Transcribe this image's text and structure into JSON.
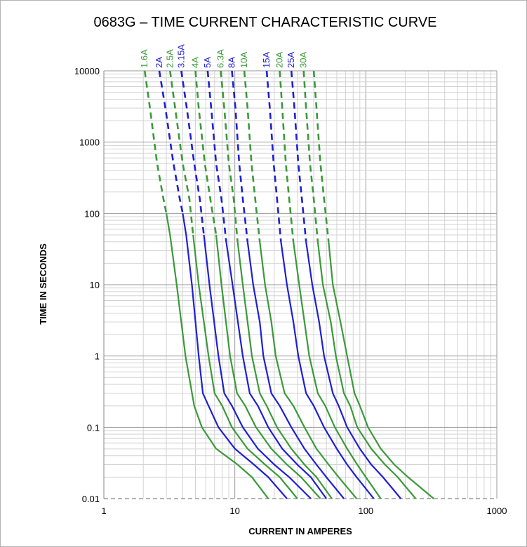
{
  "chart_data": {
    "type": "line",
    "title": "0683G – TIME CURRENT CHARACTERISTIC CURVE",
    "xlabel": "CURRENT IN AMPERES",
    "ylabel": "TIME IN SECONDS",
    "x_scale": "log",
    "y_scale": "log",
    "xlim": [
      1,
      1000
    ],
    "ylim": [
      0.01,
      10000
    ],
    "x_ticks": [
      "1",
      "10",
      "100",
      "1000"
    ],
    "y_ticks": [
      "10000",
      "1000",
      "100",
      "10",
      "1",
      "0.1",
      "0.01"
    ],
    "grid": true,
    "colors": {
      "green": "#3a9a3a",
      "blue": "#1f1fd6",
      "grid_major": "#999999",
      "grid_minor": "#d3d3d3"
    },
    "series": [
      {
        "name": "1.6A",
        "color": "green",
        "points": [
          [
            2.05,
            10000
          ],
          [
            2.25,
            3000
          ],
          [
            2.55,
            500
          ],
          [
            2.85,
            160
          ],
          [
            3.0,
            100
          ],
          [
            3.2,
            50
          ],
          [
            3.6,
            10
          ],
          [
            4.2,
            1
          ],
          [
            4.9,
            0.2
          ],
          [
            5.6,
            0.1
          ],
          [
            7.2,
            0.05
          ],
          [
            10.5,
            0.03
          ],
          [
            13.5,
            0.02
          ],
          [
            18,
            0.01
          ]
        ],
        "dashed_above": 100
      },
      {
        "name": "2A",
        "color": "blue",
        "points": [
          [
            2.65,
            10000
          ],
          [
            2.95,
            3000
          ],
          [
            3.4,
            500
          ],
          [
            3.8,
            160
          ],
          [
            4.0,
            100
          ],
          [
            4.25,
            50
          ],
          [
            4.7,
            10
          ],
          [
            5.3,
            1
          ],
          [
            5.7,
            0.3
          ],
          [
            6.3,
            0.2
          ],
          [
            7.5,
            0.1
          ],
          [
            10,
            0.05
          ],
          [
            14,
            0.03
          ],
          [
            18,
            0.02
          ],
          [
            25,
            0.01
          ]
        ],
        "dashed_above": 100
      },
      {
        "name": "2.5A",
        "color": "green",
        "points": [
          [
            3.2,
            10000
          ],
          [
            3.5,
            3000
          ],
          [
            4.0,
            500
          ],
          [
            4.5,
            160
          ],
          [
            4.8,
            50
          ],
          [
            5.3,
            10
          ],
          [
            6.3,
            1
          ],
          [
            7.0,
            0.3
          ],
          [
            8.0,
            0.2
          ],
          [
            9.5,
            0.1
          ],
          [
            12.5,
            0.05
          ],
          [
            17,
            0.03
          ],
          [
            22,
            0.02
          ],
          [
            30,
            0.01
          ]
        ],
        "dashed_above": 50
      },
      {
        "name": "3.15A",
        "color": "blue",
        "points": [
          [
            3.9,
            10000
          ],
          [
            4.3,
            3000
          ],
          [
            4.9,
            500
          ],
          [
            5.4,
            160
          ],
          [
            5.8,
            50
          ],
          [
            6.4,
            10
          ],
          [
            7.5,
            1
          ],
          [
            8.3,
            0.3
          ],
          [
            9.5,
            0.2
          ],
          [
            11.5,
            0.1
          ],
          [
            15,
            0.05
          ],
          [
            20,
            0.03
          ],
          [
            26,
            0.02
          ],
          [
            38,
            0.01
          ]
        ],
        "dashed_above": 50
      },
      {
        "name": "4A",
        "color": "green",
        "points": [
          [
            5.0,
            10000
          ],
          [
            5.3,
            3000
          ],
          [
            5.9,
            500
          ],
          [
            6.5,
            160
          ],
          [
            7.2,
            50
          ],
          [
            7.9,
            10
          ],
          [
            9.2,
            1
          ],
          [
            10.4,
            0.3
          ],
          [
            12,
            0.2
          ],
          [
            14.5,
            0.1
          ],
          [
            19,
            0.05
          ],
          [
            25,
            0.03
          ],
          [
            32,
            0.02
          ],
          [
            45,
            0.01
          ]
        ],
        "dashed_above": 50
      },
      {
        "name": "5A",
        "color": "blue",
        "points": [
          [
            6.2,
            10000
          ],
          [
            6.6,
            3000
          ],
          [
            7.2,
            500
          ],
          [
            7.9,
            160
          ],
          [
            8.6,
            40
          ],
          [
            9.6,
            10
          ],
          [
            11.5,
            1
          ],
          [
            13,
            0.3
          ],
          [
            15,
            0.2
          ],
          [
            18,
            0.1
          ],
          [
            23,
            0.05
          ],
          [
            30,
            0.03
          ],
          [
            38,
            0.02
          ],
          [
            50,
            0.01
          ]
        ],
        "dashed_above": 40
      },
      {
        "name": "6.3A",
        "color": "green",
        "points": [
          [
            7.8,
            10000
          ],
          [
            8.3,
            3000
          ],
          [
            9.0,
            500
          ],
          [
            9.8,
            160
          ],
          [
            10.5,
            40
          ],
          [
            11.5,
            10
          ],
          [
            13.5,
            1
          ],
          [
            15.5,
            0.3
          ],
          [
            17.5,
            0.2
          ],
          [
            21,
            0.1
          ],
          [
            27,
            0.05
          ],
          [
            34,
            0.03
          ],
          [
            42,
            0.02
          ],
          [
            55,
            0.01
          ]
        ],
        "dashed_above": 40
      },
      {
        "name": "8A",
        "color": "blue",
        "points": [
          [
            9.5,
            10000
          ],
          [
            10.1,
            3000
          ],
          [
            10.8,
            500
          ],
          [
            11.5,
            160
          ],
          [
            12.5,
            40
          ],
          [
            13.8,
            10
          ],
          [
            15.5,
            3
          ],
          [
            16.5,
            1
          ],
          [
            19,
            0.3
          ],
          [
            22,
            0.2
          ],
          [
            27,
            0.1
          ],
          [
            34,
            0.05
          ],
          [
            42,
            0.03
          ],
          [
            50,
            0.02
          ],
          [
            68,
            0.01
          ]
        ],
        "dashed_above": 40
      },
      {
        "name": "10A",
        "color": "green",
        "points": [
          [
            11.8,
            10000
          ],
          [
            12.5,
            3000
          ],
          [
            13.4,
            500
          ],
          [
            14.3,
            160
          ],
          [
            15.5,
            40
          ],
          [
            17,
            10
          ],
          [
            19,
            3
          ],
          [
            20.5,
            1
          ],
          [
            24,
            0.3
          ],
          [
            28,
            0.2
          ],
          [
            34,
            0.1
          ],
          [
            42,
            0.05
          ],
          [
            52,
            0.03
          ],
          [
            62,
            0.02
          ],
          [
            85,
            0.01
          ]
        ],
        "dashed_above": 40
      },
      {
        "name": "15A",
        "color": "blue",
        "points": [
          [
            17.5,
            10000
          ],
          [
            18.5,
            3000
          ],
          [
            19.8,
            500
          ],
          [
            21,
            160
          ],
          [
            22.5,
            40
          ],
          [
            25,
            10
          ],
          [
            28,
            3
          ],
          [
            30.5,
            1
          ],
          [
            35,
            0.3
          ],
          [
            40,
            0.2
          ],
          [
            48,
            0.1
          ],
          [
            60,
            0.05
          ],
          [
            72,
            0.03
          ],
          [
            85,
            0.02
          ],
          [
            115,
            0.01
          ]
        ],
        "dashed_above": 40
      },
      {
        "name": "20A",
        "color": "green",
        "points": [
          [
            22,
            10000
          ],
          [
            23,
            3000
          ],
          [
            24.5,
            500
          ],
          [
            26,
            160
          ],
          [
            28,
            40
          ],
          [
            31,
            10
          ],
          [
            34,
            3
          ],
          [
            37,
            1
          ],
          [
            43,
            0.3
          ],
          [
            49,
            0.2
          ],
          [
            58,
            0.1
          ],
          [
            72,
            0.05
          ],
          [
            86,
            0.03
          ],
          [
            100,
            0.02
          ],
          [
            130,
            0.01
          ]
        ],
        "dashed_above": 40
      },
      {
        "name": "25A",
        "color": "blue",
        "points": [
          [
            27,
            10000
          ],
          [
            28.5,
            3000
          ],
          [
            30.5,
            500
          ],
          [
            32.5,
            160
          ],
          [
            35,
            40
          ],
          [
            39,
            10
          ],
          [
            44,
            3
          ],
          [
            48,
            1
          ],
          [
            56,
            0.3
          ],
          [
            62,
            0.2
          ],
          [
            72,
            0.1
          ],
          [
            90,
            0.05
          ],
          [
            110,
            0.03
          ],
          [
            135,
            0.02
          ],
          [
            185,
            0.01
          ]
        ],
        "dashed_above": 40
      },
      {
        "name": "30A",
        "color": "green",
        "points": [
          [
            33.5,
            10000
          ],
          [
            35,
            3000
          ],
          [
            37.5,
            500
          ],
          [
            40,
            160
          ],
          [
            43,
            40
          ],
          [
            47,
            10
          ],
          [
            54,
            3
          ],
          [
            59,
            1
          ],
          [
            68,
            0.3
          ],
          [
            76,
            0.2
          ],
          [
            86,
            0.1
          ],
          [
            110,
            0.05
          ],
          [
            140,
            0.03
          ],
          [
            175,
            0.02
          ],
          [
            240,
            0.01
          ]
        ],
        "dashed_above": 40
      },
      {
        "name": "",
        "color": "green",
        "points": [
          [
            40,
            10000
          ],
          [
            42,
            3000
          ],
          [
            45,
            500
          ],
          [
            48,
            160
          ],
          [
            52,
            40
          ],
          [
            56,
            10
          ],
          [
            64,
            3
          ],
          [
            72,
            1
          ],
          [
            82,
            0.3
          ],
          [
            90,
            0.2
          ],
          [
            104,
            0.1
          ],
          [
            130,
            0.05
          ],
          [
            165,
            0.03
          ],
          [
            210,
            0.02
          ],
          [
            330,
            0.01
          ]
        ],
        "dashed_above": 40
      }
    ]
  }
}
